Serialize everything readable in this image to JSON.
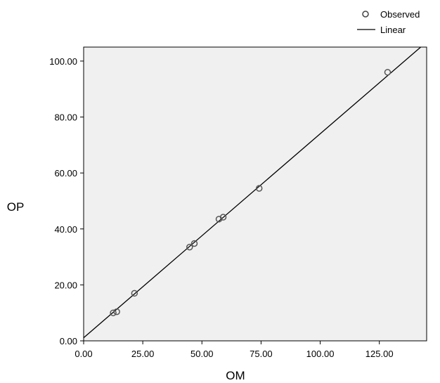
{
  "chart_data": {
    "type": "scatter",
    "xlabel": "OM",
    "ylabel": "OP",
    "xlim": [
      0,
      145
    ],
    "ylim": [
      0,
      105
    ],
    "x_ticks": [
      "0.00",
      "25.00",
      "50.00",
      "75.00",
      "100.00",
      "125.00"
    ],
    "y_ticks": [
      "0.00",
      "20.00",
      "40.00",
      "60.00",
      "80.00",
      "100.00"
    ],
    "grid": false,
    "plot_background": "#f0f0f0",
    "legend_position": "top-right",
    "legend": [
      {
        "label": "Observed",
        "marker": "circle"
      },
      {
        "label": "Linear",
        "marker": "line"
      }
    ],
    "series": [
      {
        "name": "Observed",
        "type": "scatter",
        "points": [
          {
            "x": 12.5,
            "y": 10.0
          },
          {
            "x": 14.0,
            "y": 10.4
          },
          {
            "x": 21.5,
            "y": 17.0
          },
          {
            "x": 44.8,
            "y": 33.5
          },
          {
            "x": 46.8,
            "y": 34.8
          },
          {
            "x": 57.2,
            "y": 43.5
          },
          {
            "x": 59.0,
            "y": 44.2
          },
          {
            "x": 74.2,
            "y": 54.5
          },
          {
            "x": 128.5,
            "y": 96.0
          }
        ]
      },
      {
        "name": "Linear",
        "type": "line",
        "points": [
          {
            "x": 0,
            "y": 1.1
          },
          {
            "x": 142.5,
            "y": 105
          }
        ]
      }
    ]
  }
}
